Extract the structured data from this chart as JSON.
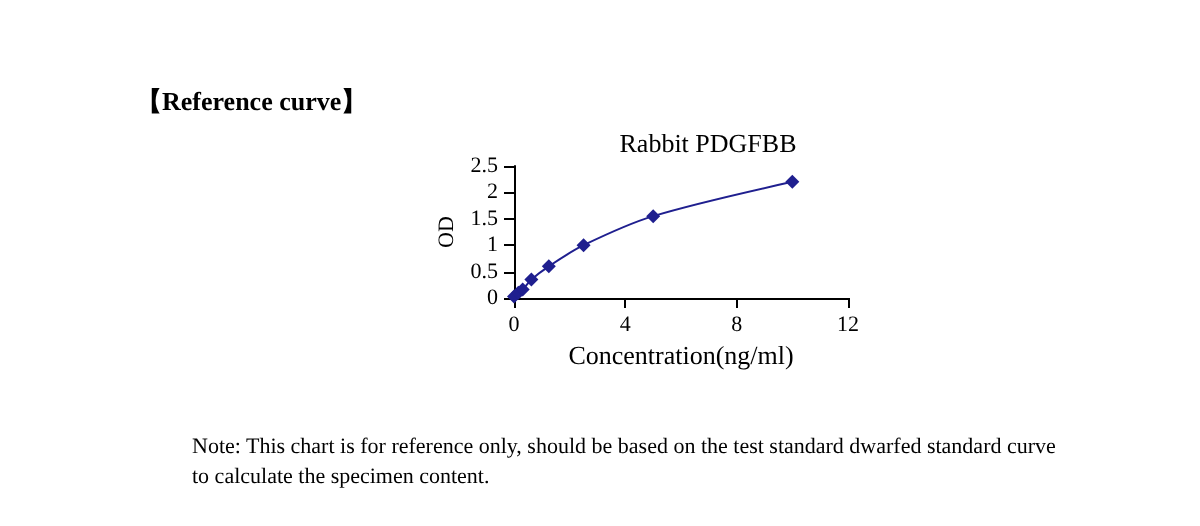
{
  "chart_data": {
    "type": "line",
    "title": "Rabbit PDGFBB",
    "xlabel": "Concentration(ng/ml)",
    "ylabel": "OD",
    "x": [
      0,
      0.156,
      0.312,
      0.625,
      1.25,
      2.5,
      5,
      10
    ],
    "series": [
      {
        "color": "#1f1f8f",
        "values": [
          0.03,
          0.1,
          0.16,
          0.35,
          0.6,
          1.0,
          1.55,
          2.2
        ]
      }
    ],
    "xlim": [
      0,
      12
    ],
    "xticks": [
      0,
      4,
      8,
      12
    ],
    "ylim": [
      0,
      2.5
    ],
    "yticks": [
      0,
      0.5,
      1,
      1.5,
      2,
      2.5
    ],
    "marker": "diamond",
    "line_style": "solid",
    "grid": false,
    "annotations": [
      "【Reference curve】",
      "Note: This chart is for reference only, should be based on the test standard dwarfed standard curve to calculate the specimen content."
    ]
  }
}
